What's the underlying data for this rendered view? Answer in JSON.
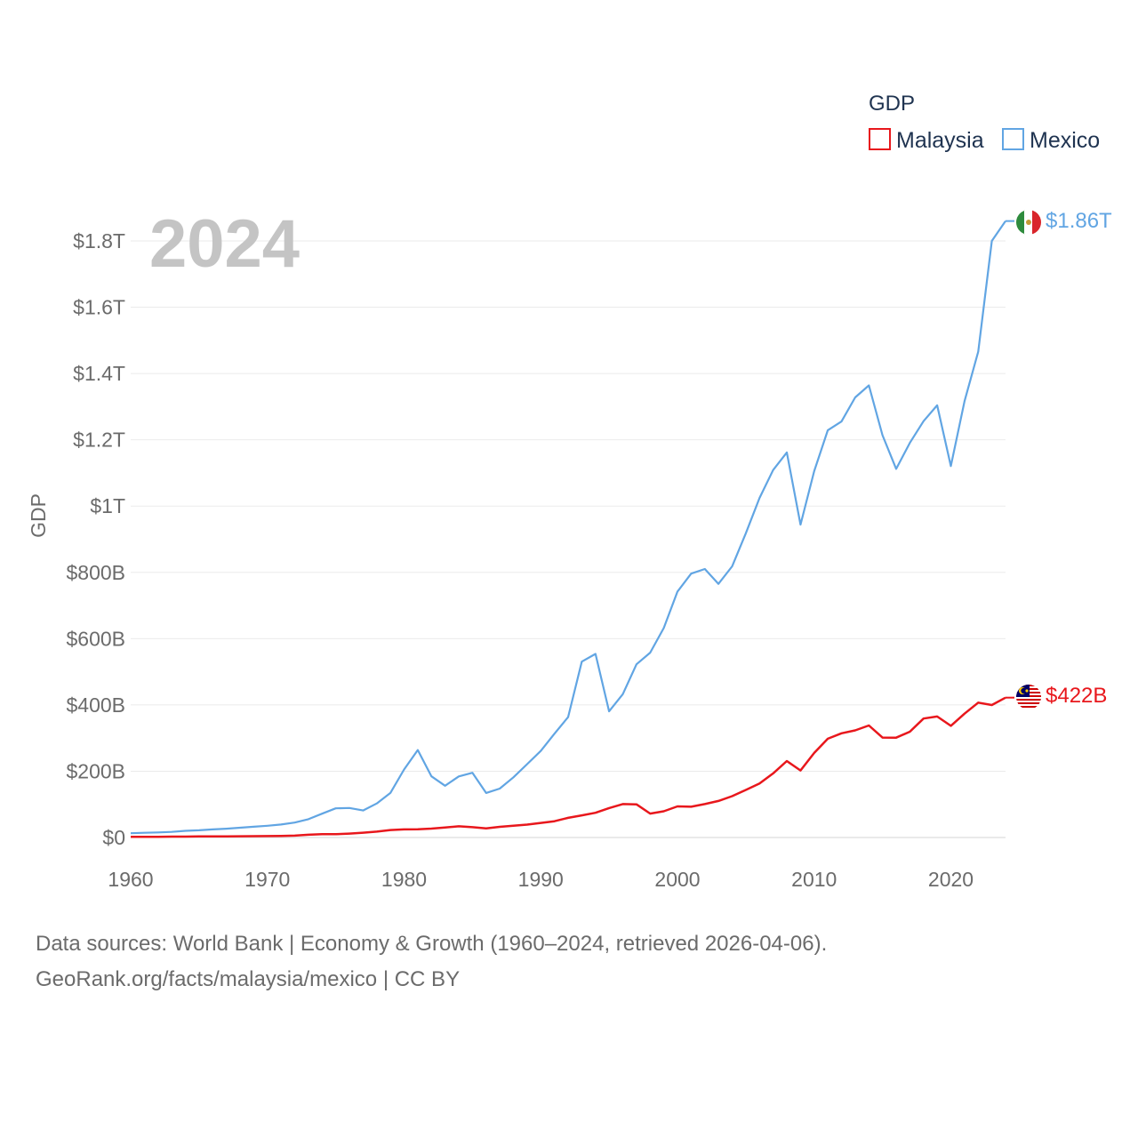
{
  "chart_data": {
    "type": "line",
    "title": "",
    "year_label": "2024",
    "xlabel": "",
    "ylabel": "GDP",
    "xlim": [
      1960,
      2024
    ],
    "ylim": [
      0,
      1800000000000
    ],
    "x_ticks": [
      1960,
      1970,
      1980,
      1990,
      2000,
      2010,
      2020
    ],
    "y_ticks": [
      {
        "value": 0,
        "label": "$0"
      },
      {
        "value": 200000000000,
        "label": "$200B"
      },
      {
        "value": 400000000000,
        "label": "$400B"
      },
      {
        "value": 600000000000,
        "label": "$600B"
      },
      {
        "value": 800000000000,
        "label": "$800B"
      },
      {
        "value": 1000000000000,
        "label": "$1T"
      },
      {
        "value": 1200000000000,
        "label": "$1.2T"
      },
      {
        "value": 1400000000000,
        "label": "$1.4T"
      },
      {
        "value": 1600000000000,
        "label": "$1.6T"
      },
      {
        "value": 1800000000000,
        "label": "$1.8T"
      }
    ],
    "grid": true,
    "legend": {
      "title": "GDP",
      "position": "top-right"
    },
    "x": [
      1960,
      1961,
      1962,
      1963,
      1964,
      1965,
      1966,
      1967,
      1968,
      1969,
      1970,
      1971,
      1972,
      1973,
      1974,
      1975,
      1976,
      1977,
      1978,
      1979,
      1980,
      1981,
      1982,
      1983,
      1984,
      1985,
      1986,
      1987,
      1988,
      1989,
      1990,
      1991,
      1992,
      1993,
      1994,
      1995,
      1996,
      1997,
      1998,
      1999,
      2000,
      2001,
      2002,
      2003,
      2004,
      2005,
      2006,
      2007,
      2008,
      2009,
      2010,
      2011,
      2012,
      2013,
      2014,
      2015,
      2016,
      2017,
      2018,
      2019,
      2020,
      2021,
      2022,
      2023,
      2024
    ],
    "series": [
      {
        "name": "Malaysia",
        "color": "#e8171c",
        "end_label": "$422B",
        "values": [
          1.9,
          2.0,
          2.2,
          2.6,
          2.8,
          3.1,
          3.3,
          3.4,
          3.7,
          4.1,
          4.2,
          4.5,
          5.5,
          8.2,
          10.2,
          10.0,
          11.9,
          14.4,
          17.8,
          22.4,
          24.5,
          25.0,
          26.8,
          30.3,
          33.9,
          31.2,
          27.7,
          32.2,
          35.3,
          38.8,
          44.0,
          49.1,
          59.2,
          66.9,
          74.5,
          88.8,
          100.9,
          100.0,
          72.2,
          79.1,
          93.8,
          92.8,
          100.8,
          110.2,
          124.7,
          143.5,
          162.7,
          193.5,
          230.8,
          202.3,
          255.0,
          298.0,
          314.4,
          323.3,
          338.1,
          301.4,
          301.3,
          319.1,
          358.8,
          365.2,
          337.0,
          373.8,
          407.0,
          399.7,
          422.0
        ]
      },
      {
        "name": "Mexico",
        "color": "#61a5e3",
        "end_label": "$1.86T",
        "values": [
          13.0,
          14.2,
          15.2,
          16.9,
          20.1,
          21.8,
          24.3,
          26.6,
          29.4,
          32.5,
          35.5,
          39.2,
          45.2,
          55.3,
          72.0,
          88.0,
          89.0,
          81.6,
          102.7,
          134.5,
          205.1,
          263.9,
          184.6,
          156.2,
          184.3,
          195.2,
          134.5,
          147.5,
          181.6,
          221.4,
          261.3,
          313.1,
          363.2,
          530.6,
          554.0,
          380.6,
          432.5,
          522.6,
          557.8,
          631.9,
          742.0,
          796.1,
          810.2,
          765.3,
          818.2,
          918.0,
          1024.4,
          1108.8,
          1161.7,
          944.0,
          1105.4,
          1229.0,
          1255.1,
          1328.0,
          1364.2,
          1213.9,
          1112.2,
          1190.7,
          1256.3,
          1304.1,
          1120.7,
          1316.6,
          1466.0,
          1800.0,
          1860.0
        ]
      }
    ]
  },
  "footer": {
    "line1": "Data sources: World Bank | Economy & Growth (1960–2024, retrieved 2026-04-06).",
    "line2": "GeoRank.org/facts/malaysia/mexico | CC BY"
  }
}
